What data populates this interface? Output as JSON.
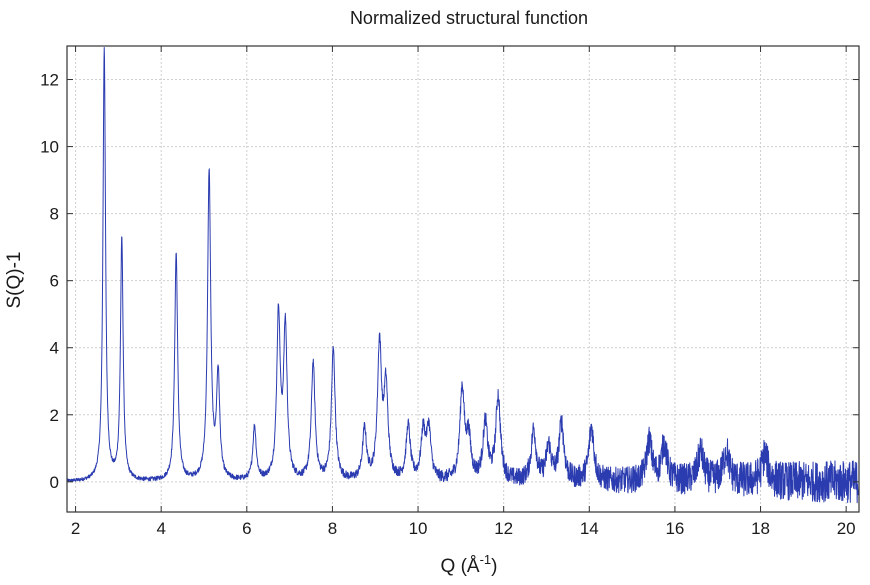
{
  "chart_data": {
    "type": "line",
    "title": "Normalized structural function",
    "xlabel_main": "Q (Å",
    "xlabel_sup": "-1",
    "xlabel_close": ")",
    "ylabel": "S(Q)-1",
    "xlim": [
      1.8,
      20.3
    ],
    "ylim": [
      -0.9,
      13.0
    ],
    "xticks": [
      2,
      4,
      6,
      8,
      10,
      12,
      14,
      16,
      18,
      20
    ],
    "yticks": [
      0,
      2,
      4,
      6,
      8,
      10,
      12
    ],
    "grid": true,
    "series_color": "#2b3bb0",
    "series": [
      {
        "peaks": [
          {
            "q": 2.67,
            "height": 12.9
          },
          {
            "q": 3.08,
            "height": 7.2
          },
          {
            "q": 4.35,
            "height": 6.8
          },
          {
            "q": 5.12,
            "height": 9.2
          },
          {
            "q": 5.33,
            "height": 3.1
          },
          {
            "q": 6.18,
            "height": 1.6
          },
          {
            "q": 6.74,
            "height": 4.9
          },
          {
            "q": 6.9,
            "height": 4.5
          },
          {
            "q": 7.55,
            "height": 3.5
          },
          {
            "q": 8.02,
            "height": 3.9
          },
          {
            "q": 8.75,
            "height": 1.5
          },
          {
            "q": 9.1,
            "height": 4.0
          },
          {
            "q": 9.25,
            "height": 2.7
          },
          {
            "q": 9.77,
            "height": 1.6
          },
          {
            "q": 10.12,
            "height": 1.4
          },
          {
            "q": 10.25,
            "height": 1.5
          },
          {
            "q": 11.03,
            "height": 2.7
          },
          {
            "q": 11.18,
            "height": 1.2
          },
          {
            "q": 11.57,
            "height": 1.7
          },
          {
            "q": 11.87,
            "height": 2.5
          },
          {
            "q": 12.7,
            "height": 1.5
          },
          {
            "q": 13.05,
            "height": 1.0
          },
          {
            "q": 13.35,
            "height": 1.7
          },
          {
            "q": 14.05,
            "height": 1.6
          },
          {
            "q": 15.4,
            "height": 1.2
          },
          {
            "q": 15.75,
            "height": 1.1
          },
          {
            "q": 16.6,
            "height": 0.9
          },
          {
            "q": 17.2,
            "height": 0.9
          },
          {
            "q": 18.1,
            "height": 0.8
          }
        ],
        "noise_profile": [
          {
            "q": 2.0,
            "amplitude": 0.05
          },
          {
            "q": 6.0,
            "amplitude": 0.08
          },
          {
            "q": 10.0,
            "amplitude": 0.15
          },
          {
            "q": 12.0,
            "amplitude": 0.25
          },
          {
            "q": 14.0,
            "amplitude": 0.35
          },
          {
            "q": 16.0,
            "amplitude": 0.45
          },
          {
            "q": 18.0,
            "amplitude": 0.55
          },
          {
            "q": 20.3,
            "amplitude": 0.65
          }
        ]
      }
    ]
  }
}
